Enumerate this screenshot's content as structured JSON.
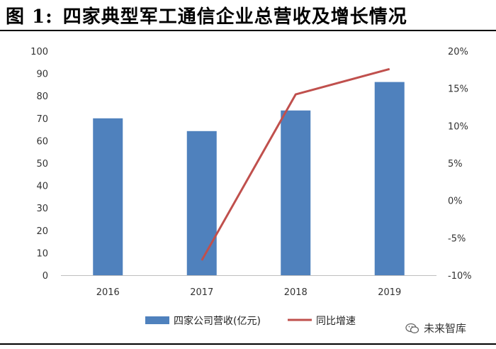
{
  "title": {
    "prefix": "图 1:",
    "text": "四家典型军工通信企业总营收及增长情况"
  },
  "watermark": {
    "text": "未来智库"
  },
  "colors": {
    "bar": "#4F81BD",
    "line": "#C0504D"
  },
  "chart_data": {
    "type": "bar",
    "categories": [
      "2016",
      "2017",
      "2018",
      "2019"
    ],
    "series": [
      {
        "name": "四家公司营收(亿元)",
        "type": "bar",
        "axis": "left",
        "values": [
          70,
          64.3,
          73.5,
          86.2
        ]
      },
      {
        "name": "同比增速",
        "type": "line",
        "axis": "right",
        "values": [
          null,
          -8.0,
          14.2,
          17.6
        ]
      }
    ],
    "y_left": {
      "ylim": [
        0,
        100
      ],
      "ticks": [
        "0",
        "10",
        "20",
        "30",
        "40",
        "50",
        "60",
        "70",
        "80",
        "90",
        "100"
      ]
    },
    "y_right": {
      "ylim": [
        -10,
        20
      ],
      "ticks": [
        "-10%",
        "-5%",
        "0%",
        "5%",
        "10%",
        "15%",
        "20%"
      ]
    },
    "grid": false,
    "legend": "bottom"
  }
}
